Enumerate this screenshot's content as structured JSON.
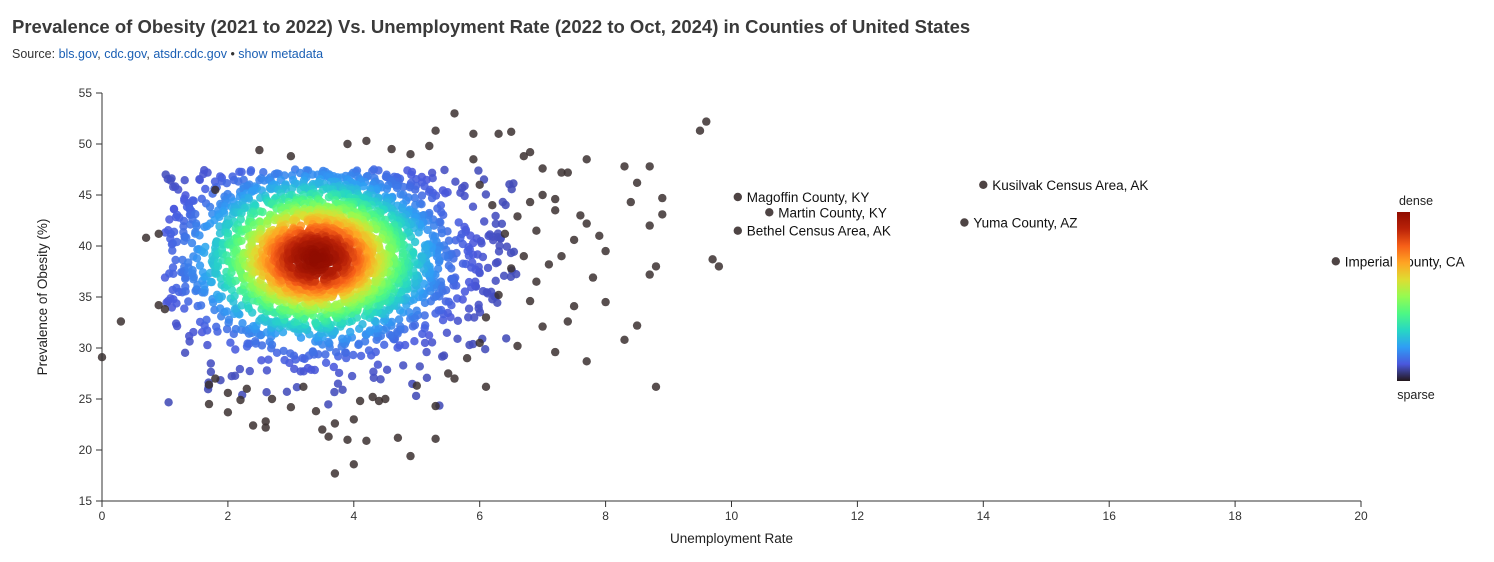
{
  "header": {
    "title": "Prevalence of Obesity (2021 to 2022) Vs. Unemployment Rate (2022 to Oct, 2024) in Counties of United States",
    "source_prefix": "Source: ",
    "source_links": [
      "bls.gov",
      "cdc.gov",
      "atsdr.cdc.gov"
    ],
    "bullet": " • ",
    "metadata_link": "show metadata"
  },
  "chart_data": {
    "type": "scatter",
    "xlabel": "Unemployment Rate",
    "ylabel": "Prevalence of Obesity (%)",
    "xlim": [
      0,
      20
    ],
    "ylim": [
      15,
      55
    ],
    "xticks": [
      0,
      2,
      4,
      6,
      8,
      10,
      12,
      14,
      16,
      18,
      20
    ],
    "yticks": [
      15,
      20,
      25,
      30,
      35,
      40,
      45,
      50,
      55
    ],
    "density_center": {
      "x": 3.4,
      "y": 38.8
    },
    "color_scale": [
      "#23171b",
      "#4a58dd",
      "#2f9df5",
      "#27d7c4",
      "#4df884",
      "#95fb51",
      "#dedd32",
      "#ffa423",
      "#f65f18",
      "#ba2208",
      "#900c00"
    ],
    "legend": {
      "top": "dense",
      "bottom": "sparse",
      "placement": "right"
    },
    "labeled_points": [
      {
        "x": 10.1,
        "y": 44.8,
        "label": "Magoffin County, KY"
      },
      {
        "x": 10.6,
        "y": 43.3,
        "label": "Martin County, KY"
      },
      {
        "x": 10.1,
        "y": 41.5,
        "label": "Bethel Census Area, AK"
      },
      {
        "x": 14.0,
        "y": 46.0,
        "label": "Kusilvak Census Area, AK"
      },
      {
        "x": 13.7,
        "y": 42.3,
        "label": "Yuma County, AZ"
      },
      {
        "x": 19.6,
        "y": 38.5,
        "label": "Imperial County, CA"
      }
    ],
    "outlier_points": [
      [
        0.0,
        29.1
      ],
      [
        0.3,
        32.6
      ],
      [
        0.7,
        40.8
      ],
      [
        0.9,
        41.2
      ],
      [
        0.9,
        34.2
      ],
      [
        1.0,
        33.8
      ],
      [
        1.7,
        26.4
      ],
      [
        1.7,
        24.5
      ],
      [
        1.8,
        27.0
      ],
      [
        1.8,
        45.5
      ],
      [
        2.0,
        25.6
      ],
      [
        2.0,
        23.7
      ],
      [
        2.3,
        26.0
      ],
      [
        2.4,
        22.4
      ],
      [
        2.6,
        22.2
      ],
      [
        2.6,
        22.8
      ],
      [
        2.7,
        25.0
      ],
      [
        3.0,
        24.2
      ],
      [
        3.4,
        23.8
      ],
      [
        3.5,
        22.0
      ],
      [
        3.6,
        21.3
      ],
      [
        3.7,
        17.7
      ],
      [
        3.7,
        22.6
      ],
      [
        3.9,
        21.0
      ],
      [
        4.0,
        23.0
      ],
      [
        4.0,
        18.6
      ],
      [
        4.2,
        20.9
      ],
      [
        4.4,
        24.8
      ],
      [
        4.7,
        21.2
      ],
      [
        4.9,
        19.4
      ],
      [
        5.3,
        21.1
      ],
      [
        5.0,
        26.3
      ],
      [
        5.3,
        24.3
      ],
      [
        5.6,
        27.0
      ],
      [
        5.6,
        53.0
      ],
      [
        5.3,
        51.3
      ],
      [
        5.9,
        51.0
      ],
      [
        6.1,
        26.2
      ],
      [
        6.3,
        51.0
      ],
      [
        6.5,
        51.2
      ],
      [
        6.7,
        48.8
      ],
      [
        6.8,
        49.2
      ],
      [
        7.0,
        47.6
      ],
      [
        7.3,
        47.2
      ],
      [
        7.4,
        47.2
      ],
      [
        7.7,
        48.5
      ],
      [
        8.3,
        47.8
      ],
      [
        8.7,
        47.8
      ],
      [
        8.5,
        46.2
      ],
      [
        8.4,
        44.3
      ],
      [
        8.9,
        44.7
      ],
      [
        8.9,
        43.1
      ],
      [
        8.7,
        42.0
      ],
      [
        8.8,
        38.0
      ],
      [
        8.7,
        37.2
      ],
      [
        8.3,
        30.8
      ],
      [
        8.5,
        32.2
      ],
      [
        8.8,
        26.2
      ],
      [
        7.7,
        28.7
      ],
      [
        8.0,
        34.5
      ],
      [
        7.8,
        36.9
      ],
      [
        8.0,
        39.5
      ],
      [
        7.9,
        41.0
      ],
      [
        7.7,
        42.2
      ],
      [
        7.4,
        32.6
      ],
      [
        7.5,
        34.1
      ],
      [
        7.2,
        29.6
      ],
      [
        7.0,
        32.1
      ],
      [
        6.8,
        34.6
      ],
      [
        6.6,
        30.2
      ],
      [
        6.9,
        36.5
      ],
      [
        7.1,
        38.2
      ],
      [
        7.3,
        39.0
      ],
      [
        7.5,
        40.6
      ],
      [
        7.6,
        43.0
      ],
      [
        7.2,
        43.5
      ],
      [
        7.0,
        45.0
      ],
      [
        6.8,
        44.3
      ],
      [
        6.6,
        42.9
      ],
      [
        6.4,
        41.2
      ],
      [
        6.5,
        37.8
      ],
      [
        6.3,
        35.2
      ],
      [
        6.1,
        33.0
      ],
      [
        6.0,
        30.5
      ],
      [
        5.8,
        29.0
      ],
      [
        5.5,
        27.5
      ],
      [
        9.5,
        51.3
      ],
      [
        9.6,
        52.2
      ],
      [
        9.7,
        38.7
      ],
      [
        9.8,
        38.0
      ],
      [
        7.2,
        44.6
      ],
      [
        6.9,
        41.5
      ],
      [
        6.7,
        39.0
      ],
      [
        6.2,
        44.0
      ],
      [
        6.0,
        46.0
      ],
      [
        5.9,
        48.5
      ],
      [
        4.6,
        49.5
      ],
      [
        4.2,
        50.3
      ],
      [
        3.9,
        50.0
      ],
      [
        3.0,
        48.8
      ],
      [
        2.5,
        49.4
      ],
      [
        4.9,
        49.0
      ],
      [
        5.2,
        49.8
      ],
      [
        4.5,
        25.0
      ],
      [
        4.3,
        25.2
      ],
      [
        4.1,
        24.8
      ],
      [
        3.2,
        26.2
      ],
      [
        2.2,
        24.9
      ]
    ]
  }
}
